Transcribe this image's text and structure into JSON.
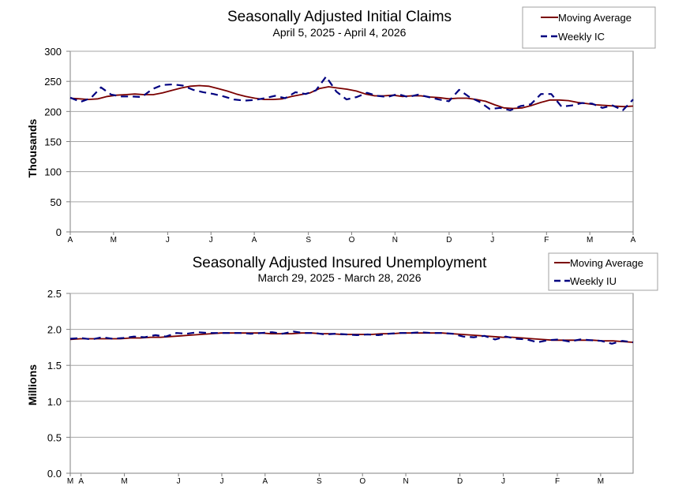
{
  "chart_data": [
    {
      "type": "line",
      "title": "Seasonally Adjusted Initial Claims",
      "subtitle": "April 5, 2025 - April 4, 2026",
      "ylabel": "Thousands",
      "ylim": [
        0,
        300
      ],
      "yticks": [
        "0",
        "50",
        "100",
        "150",
        "200",
        "250",
        "300"
      ],
      "month_labels": [
        "A",
        "M",
        "J",
        "J",
        "A",
        "S",
        "O",
        "N",
        "D",
        "J",
        "F",
        "M",
        "A"
      ],
      "month_positions": [
        0,
        4,
        9,
        13,
        17,
        22,
        26,
        30,
        35,
        39,
        44,
        48,
        52
      ],
      "grid": true,
      "legend": "top-right",
      "colors": {
        "moving_average": "#7a0000",
        "weekly": "#000080"
      },
      "series": [
        {
          "name": "Moving Average",
          "style": "solid",
          "values": [
            222,
            221,
            220,
            221,
            225,
            227,
            228,
            229,
            228,
            228,
            231,
            235,
            239,
            242,
            243,
            242,
            238,
            234,
            229,
            225,
            222,
            220,
            220,
            221,
            225,
            228,
            231,
            238,
            241,
            239,
            237,
            234,
            229,
            226,
            226,
            227,
            225,
            226,
            226,
            224,
            223,
            221,
            222,
            222,
            220,
            217,
            211,
            206,
            205,
            206,
            210,
            215,
            219,
            219,
            218,
            215,
            213,
            211,
            210,
            209,
            208,
            209
          ]
        },
        {
          "name": "Weekly IC",
          "style": "dashed",
          "values": [
            223,
            216,
            222,
            240,
            228,
            225,
            225,
            224,
            237,
            244,
            245,
            243,
            236,
            232,
            229,
            225,
            220,
            218,
            219,
            222,
            226,
            222,
            232,
            229,
            235,
            258,
            233,
            220,
            224,
            231,
            226,
            224,
            229,
            224,
            228,
            224,
            220,
            217,
            236,
            224,
            216,
            204,
            206,
            202,
            209,
            212,
            229,
            229,
            208,
            210,
            214,
            213,
            206,
            210,
            202,
            220
          ]
        }
      ]
    },
    {
      "type": "line",
      "title": "Seasonally Adjusted Insured Unemployment",
      "subtitle": "March 29, 2025 - March 28, 2026",
      "ylabel": "Millions",
      "ylim": [
        0,
        2.5
      ],
      "yticks": [
        "0.0",
        "0.5",
        "1.0",
        "1.5",
        "2.0",
        "2.5"
      ],
      "month_labels": [
        "M",
        "A",
        "M",
        "J",
        "J",
        "A",
        "S",
        "O",
        "N",
        "D",
        "J",
        "F",
        "M"
      ],
      "month_positions": [
        0,
        1,
        5,
        10,
        14,
        18,
        23,
        27,
        31,
        36,
        40,
        45,
        49
      ],
      "grid": true,
      "legend": "top-right",
      "colors": {
        "moving_average": "#7a0000",
        "weekly": "#000080"
      },
      "series": [
        {
          "name": "Moving Average",
          "style": "solid",
          "values": [
            1.86,
            1.87,
            1.87,
            1.87,
            1.87,
            1.87,
            1.88,
            1.88,
            1.89,
            1.89,
            1.9,
            1.91,
            1.92,
            1.93,
            1.94,
            1.95,
            1.95,
            1.95,
            1.95,
            1.95,
            1.94,
            1.94,
            1.94,
            1.95,
            1.95,
            1.94,
            1.94,
            1.93,
            1.93,
            1.93,
            1.93,
            1.94,
            1.94,
            1.95,
            1.95,
            1.95,
            1.95,
            1.95,
            1.94,
            1.93,
            1.92,
            1.91,
            1.9,
            1.89,
            1.89,
            1.88,
            1.87,
            1.86,
            1.85,
            1.85,
            1.85,
            1.85,
            1.85,
            1.84,
            1.84,
            1.83,
            1.82
          ]
        },
        {
          "name": "Weekly IU",
          "style": "dashed",
          "values": [
            1.87,
            1.88,
            1.86,
            1.89,
            1.87,
            1.88,
            1.9,
            1.89,
            1.92,
            1.9,
            1.95,
            1.94,
            1.96,
            1.95,
            1.95,
            1.95,
            1.95,
            1.94,
            1.95,
            1.96,
            1.94,
            1.97,
            1.95,
            1.95,
            1.93,
            1.94,
            1.93,
            1.92,
            1.93,
            1.92,
            1.94,
            1.95,
            1.95,
            1.96,
            1.95,
            1.95,
            1.94,
            1.9,
            1.89,
            1.91,
            1.86,
            1.9,
            1.87,
            1.86,
            1.82,
            1.85,
            1.86,
            1.83,
            1.86,
            1.85,
            1.84,
            1.8,
            1.84,
            1.82
          ]
        }
      ]
    }
  ]
}
